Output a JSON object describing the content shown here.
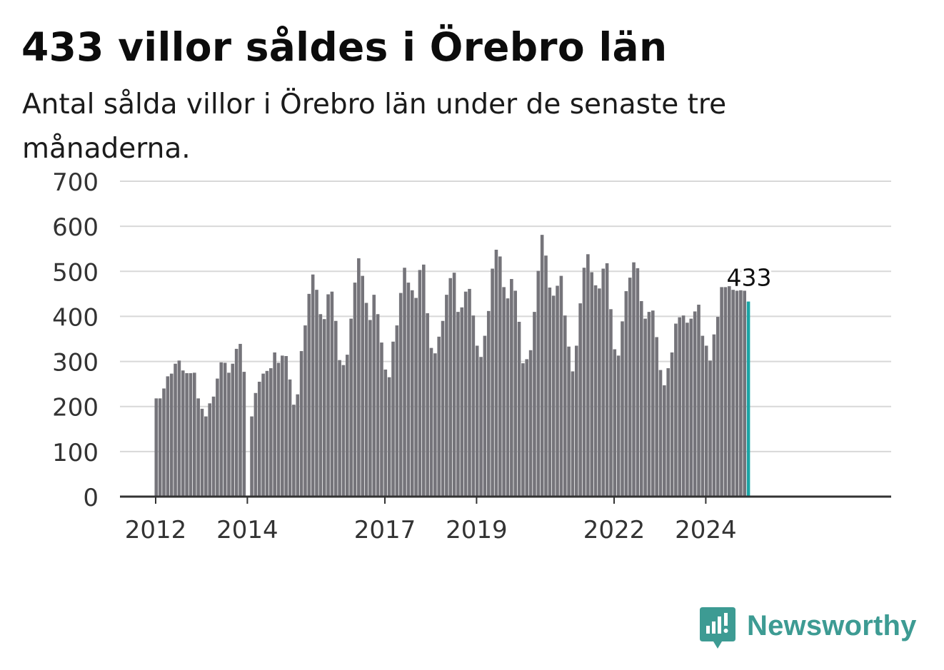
{
  "header": {
    "title": "433 villor såldes i Örebro län",
    "subtitle": "Antal sålda villor i Örebro län under de senaste tre månaderna."
  },
  "brand": {
    "name": "Newsworthy",
    "icon": "newsworthy-logo-icon",
    "color": "#3d9b93"
  },
  "colors": {
    "bar": "#75747a",
    "highlight": "#1ba5a5",
    "grid": "#d8d8d8",
    "axis": "#333333"
  },
  "chart_data": {
    "type": "bar",
    "ylim": [
      0,
      700
    ],
    "yticks": [
      "0",
      "100",
      "200",
      "300",
      "400",
      "500",
      "600",
      "700"
    ],
    "xticks": [
      "2012",
      "2014",
      "2017",
      "2019",
      "2022",
      "2024"
    ],
    "highlight_label": "433",
    "grid": true,
    "series": [
      {
        "values": [
          218,
          218,
          240,
          267,
          273,
          295,
          302,
          280,
          274,
          274,
          275,
          218,
          195,
          178,
          207,
          222,
          262,
          298,
          297,
          275,
          295,
          328,
          339,
          277,
          null,
          178,
          230,
          255,
          273,
          279,
          285,
          320,
          297,
          313,
          312,
          260,
          204,
          227,
          323,
          380,
          450,
          493,
          459,
          405,
          394,
          449,
          455,
          390,
          303,
          292,
          315,
          395,
          475,
          529,
          490,
          430,
          392,
          448,
          405,
          342,
          282,
          265,
          344,
          380,
          452,
          508,
          475,
          458,
          441,
          503,
          515,
          407,
          330,
          318,
          355,
          390,
          448,
          485,
          497,
          410,
          420,
          455,
          461,
          402,
          335,
          310,
          357,
          412,
          506,
          548,
          533,
          465,
          440,
          483,
          457,
          388,
          296,
          305,
          325,
          410,
          501,
          581,
          535,
          464,
          446,
          468,
          490,
          402,
          333,
          278,
          335,
          429,
          508,
          538,
          498,
          469,
          462,
          506,
          518,
          416,
          327,
          313,
          389,
          456,
          486,
          520,
          507,
          434,
          395,
          410,
          413,
          354,
          281,
          247,
          285,
          320,
          384,
          398,
          402,
          386,
          395,
          411,
          426,
          357,
          335,
          302,
          360,
          399,
          465,
          465,
          467,
          459,
          457,
          458,
          457,
          433
        ]
      }
    ]
  }
}
